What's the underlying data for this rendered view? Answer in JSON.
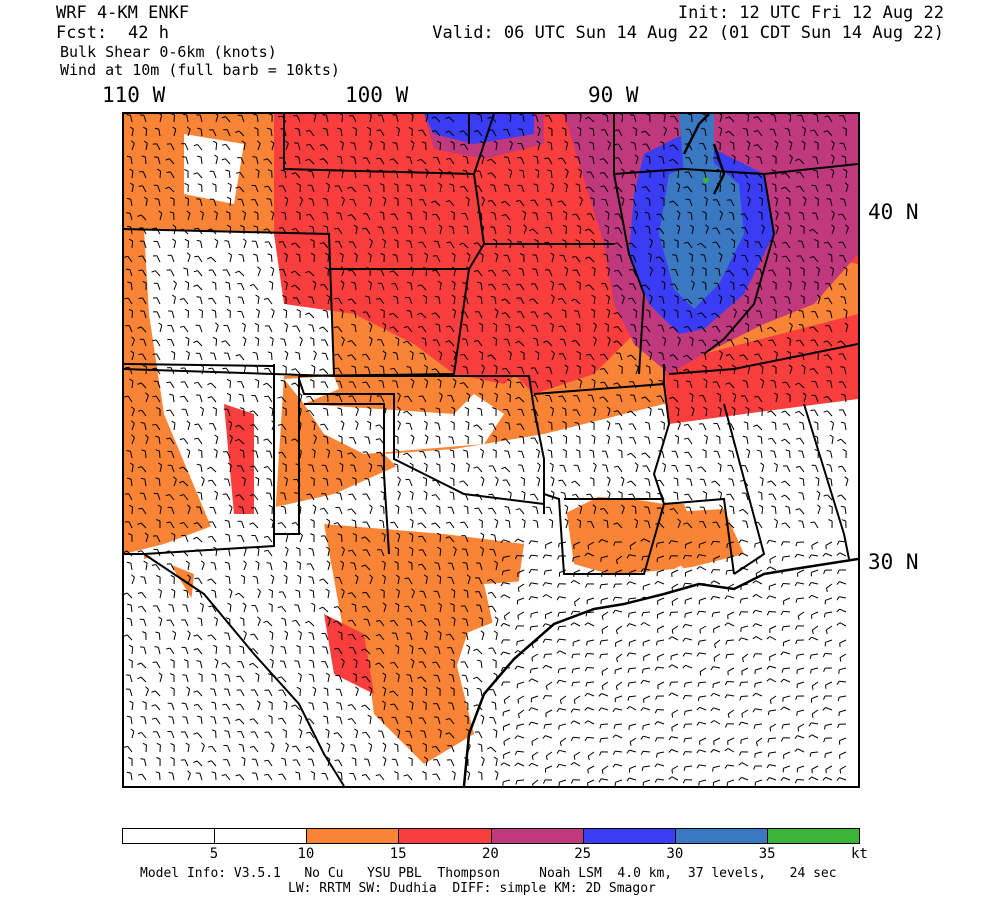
{
  "header": {
    "model": "WRF 4-KM ENKF",
    "fcst_label": "Fcst:",
    "fcst_value": "42 h",
    "init": "Init: 12 UTC Fri 12 Aug 22",
    "valid": "Valid: 06 UTC Sun 14 Aug 22 (01 CDT Sun 14 Aug 22)",
    "field1": "Bulk Shear 0-6km (knots)",
    "field2": "Wind at 10m (full barb = 10kts)"
  },
  "axes": {
    "lon_labels": [
      "110 W",
      "100 W",
      "90 W"
    ],
    "lat_labels": [
      "40 N",
      "30 N"
    ]
  },
  "colorbar": {
    "colors": [
      "#ffffff",
      "#ffffff",
      "#fa8435",
      "#fa3d3d",
      "#c0387e",
      "#3a3df5",
      "#3a78c2",
      "#3ab53a"
    ],
    "tick_labels": [
      "5",
      "10",
      "15",
      "20",
      "25",
      "30",
      "35",
      "kt"
    ]
  },
  "footer": {
    "line1": "Model Info: V3.5.1   No Cu   YSU PBL  Thompson     Noah LSM  4.0 km,  37 levels,   24 sec",
    "line2": "LW: RRTM SW: Dudhia  DIFF: simple KM: 2D Smagor"
  }
}
